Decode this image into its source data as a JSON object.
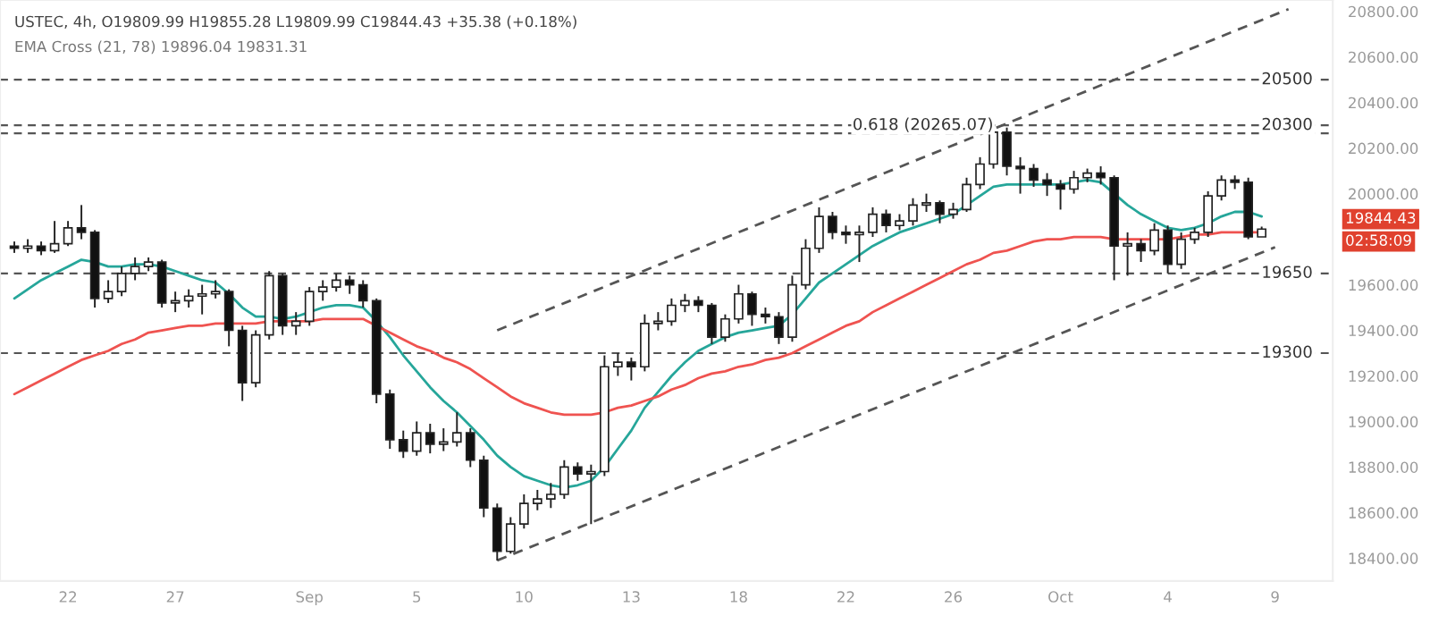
{
  "chart_data": {
    "type": "candlestick",
    "title": "USTEC, 4h, O19809.99 H19855.28 L19809.99 C19844.43 +35.38 (+0.18%)",
    "subtitle": "EMA Cross (21, 78) 19896.04 19831.31",
    "categories": [
      null,
      null,
      null,
      null,
      "22",
      null,
      null,
      null,
      null,
      null,
      null,
      null,
      "27",
      null,
      null,
      null,
      null,
      null,
      null,
      null,
      null,
      null,
      "Sep",
      null,
      null,
      null,
      null,
      null,
      null,
      null,
      "5",
      null,
      null,
      null,
      null,
      null,
      null,
      null,
      "10",
      null,
      null,
      null,
      null,
      null,
      null,
      null,
      "13",
      null,
      null,
      null,
      null,
      null,
      null,
      null,
      "18",
      null,
      null,
      null,
      null,
      null,
      null,
      null,
      "22",
      null,
      null,
      null,
      null,
      null,
      null,
      null,
      "26",
      null,
      null,
      null,
      null,
      null,
      null,
      null,
      "Oct",
      null,
      null,
      null,
      null,
      null,
      null,
      null,
      "4",
      null,
      null,
      null,
      null,
      null,
      null,
      null,
      "9",
      null,
      null,
      null,
      null
    ],
    "ohlc": [
      [
        19770,
        19790,
        19740,
        19760
      ],
      [
        19760,
        19800,
        19740,
        19770
      ],
      [
        19770,
        19790,
        19730,
        19750
      ],
      [
        19750,
        19880,
        19740,
        19780
      ],
      [
        19780,
        19880,
        19770,
        19850
      ],
      [
        19850,
        19950,
        19800,
        19830
      ],
      [
        19830,
        19840,
        19500,
        19540
      ],
      [
        19540,
        19620,
        19520,
        19570
      ],
      [
        19570,
        19680,
        19550,
        19650
      ],
      [
        19650,
        19720,
        19620,
        19680
      ],
      [
        19680,
        19720,
        19660,
        19700
      ],
      [
        19700,
        19710,
        19500,
        19520
      ],
      [
        19520,
        19570,
        19480,
        19530
      ],
      [
        19530,
        19580,
        19500,
        19550
      ],
      [
        19550,
        19600,
        19470,
        19560
      ],
      [
        19560,
        19620,
        19540,
        19570
      ],
      [
        19570,
        19580,
        19330,
        19400
      ],
      [
        19400,
        19420,
        19090,
        19170
      ],
      [
        19170,
        19400,
        19150,
        19380
      ],
      [
        19380,
        19660,
        19360,
        19640
      ],
      [
        19640,
        19650,
        19380,
        19420
      ],
      [
        19420,
        19480,
        19380,
        19440
      ],
      [
        19440,
        19590,
        19420,
        19570
      ],
      [
        19570,
        19620,
        19530,
        19590
      ],
      [
        19590,
        19650,
        19570,
        19620
      ],
      [
        19620,
        19640,
        19560,
        19600
      ],
      [
        19600,
        19620,
        19500,
        19530
      ],
      [
        19530,
        19540,
        19080,
        19120
      ],
      [
        19120,
        19140,
        18880,
        18920
      ],
      [
        18920,
        18960,
        18840,
        18870
      ],
      [
        18870,
        19000,
        18850,
        18950
      ],
      [
        18950,
        18990,
        18860,
        18900
      ],
      [
        18900,
        18970,
        18870,
        18910
      ],
      [
        18910,
        19040,
        18890,
        18950
      ],
      [
        18950,
        18970,
        18800,
        18830
      ],
      [
        18830,
        18850,
        18580,
        18620
      ],
      [
        18620,
        18640,
        18390,
        18430
      ],
      [
        18430,
        18580,
        18420,
        18550
      ],
      [
        18550,
        18680,
        18530,
        18640
      ],
      [
        18640,
        18700,
        18610,
        18660
      ],
      [
        18660,
        18730,
        18620,
        18680
      ],
      [
        18680,
        18830,
        18660,
        18800
      ],
      [
        18800,
        18820,
        18740,
        18770
      ],
      [
        18770,
        18810,
        18550,
        18780
      ],
      [
        18780,
        19290,
        18760,
        19240
      ],
      [
        19240,
        19300,
        19200,
        19260
      ],
      [
        19260,
        19280,
        19180,
        19240
      ],
      [
        19240,
        19470,
        19220,
        19430
      ],
      [
        19430,
        19480,
        19400,
        19440
      ],
      [
        19440,
        19540,
        19420,
        19510
      ],
      [
        19510,
        19560,
        19480,
        19530
      ],
      [
        19530,
        19550,
        19480,
        19510
      ],
      [
        19510,
        19520,
        19340,
        19370
      ],
      [
        19370,
        19470,
        19350,
        19450
      ],
      [
        19450,
        19600,
        19430,
        19560
      ],
      [
        19560,
        19570,
        19420,
        19470
      ],
      [
        19470,
        19500,
        19430,
        19460
      ],
      [
        19460,
        19480,
        19340,
        19370
      ],
      [
        19370,
        19640,
        19350,
        19600
      ],
      [
        19600,
        19800,
        19580,
        19760
      ],
      [
        19760,
        19940,
        19740,
        19900
      ],
      [
        19900,
        19920,
        19800,
        19830
      ],
      [
        19830,
        19860,
        19780,
        19820
      ],
      [
        19820,
        19860,
        19700,
        19830
      ],
      [
        19830,
        19940,
        19810,
        19910
      ],
      [
        19910,
        19930,
        19830,
        19860
      ],
      [
        19860,
        19910,
        19840,
        19880
      ],
      [
        19880,
        19980,
        19860,
        19950
      ],
      [
        19950,
        20000,
        19920,
        19960
      ],
      [
        19960,
        19970,
        19870,
        19910
      ],
      [
        19910,
        19960,
        19890,
        19930
      ],
      [
        19930,
        20070,
        19920,
        20040
      ],
      [
        20040,
        20160,
        20020,
        20130
      ],
      [
        20130,
        20300,
        20110,
        20270
      ],
      [
        20270,
        20290,
        20080,
        20120
      ],
      [
        20120,
        20160,
        20000,
        20110
      ],
      [
        20110,
        20130,
        20030,
        20060
      ],
      [
        20060,
        20090,
        19990,
        20040
      ],
      [
        20040,
        20060,
        19930,
        20020
      ],
      [
        20020,
        20100,
        20000,
        20070
      ],
      [
        20070,
        20110,
        20050,
        20090
      ],
      [
        20090,
        20120,
        20040,
        20070
      ],
      [
        20070,
        20080,
        19620,
        19770
      ],
      [
        19770,
        19830,
        19640,
        19780
      ],
      [
        19780,
        19800,
        19700,
        19750
      ],
      [
        19750,
        19870,
        19730,
        19840
      ],
      [
        19840,
        19860,
        19650,
        19690
      ],
      [
        19690,
        19830,
        19670,
        19800
      ],
      [
        19800,
        19850,
        19780,
        19830
      ],
      [
        19830,
        20010,
        19810,
        19990
      ],
      [
        19990,
        20080,
        19970,
        20060
      ],
      [
        20060,
        20080,
        20020,
        20050
      ],
      [
        20050,
        20070,
        19800,
        19810
      ],
      [
        19809.99,
        19855.28,
        19809.99,
        19844.43
      ],
      null,
      null,
      null,
      null,
      null
    ],
    "series": [
      {
        "type": "line",
        "color": "#26a69a",
        "values": [
          19540,
          19580,
          19620,
          19650,
          19680,
          19710,
          19700,
          19680,
          19680,
          19690,
          19690,
          19680,
          19660,
          19640,
          19620,
          19610,
          19560,
          19500,
          19460,
          19460,
          19450,
          19460,
          19480,
          19500,
          19510,
          19510,
          19500,
          19440,
          19370,
          19290,
          19220,
          19150,
          19090,
          19040,
          18980,
          18920,
          18850,
          18800,
          18760,
          18740,
          18720,
          18710,
          18720,
          18740,
          18800,
          18880,
          18960,
          19060,
          19130,
          19200,
          19260,
          19310,
          19340,
          19370,
          19390,
          19400,
          19410,
          19420,
          19470,
          19540,
          19610,
          19650,
          19690,
          19730,
          19770,
          19800,
          19830,
          19850,
          19870,
          19890,
          19910,
          19950,
          19990,
          20030,
          20040,
          20040,
          20040,
          20040,
          20040,
          20050,
          20060,
          20050,
          20000,
          19950,
          19910,
          19880,
          19850,
          19840,
          19850,
          19870,
          19900,
          19920,
          19920,
          19900,
          null,
          null,
          null,
          null,
          null
        ]
      },
      {
        "type": "line",
        "color": "#ef5350",
        "values": [
          19120,
          19150,
          19180,
          19210,
          19240,
          19270,
          19290,
          19310,
          19340,
          19360,
          19390,
          19400,
          19410,
          19420,
          19420,
          19430,
          19430,
          19430,
          19430,
          19440,
          19440,
          19440,
          19440,
          19450,
          19450,
          19450,
          19450,
          19420,
          19390,
          19360,
          19330,
          19310,
          19280,
          19260,
          19230,
          19190,
          19150,
          19110,
          19080,
          19060,
          19040,
          19030,
          19030,
          19030,
          19040,
          19060,
          19070,
          19090,
          19110,
          19140,
          19160,
          19190,
          19210,
          19220,
          19240,
          19250,
          19270,
          19280,
          19300,
          19330,
          19360,
          19390,
          19420,
          19440,
          19480,
          19510,
          19540,
          19570,
          19600,
          19630,
          19660,
          19690,
          19710,
          19740,
          19750,
          19770,
          19790,
          19800,
          19800,
          19810,
          19810,
          19810,
          19800,
          19800,
          19800,
          19800,
          19800,
          19810,
          19820,
          19820,
          19830,
          19830,
          19830,
          19830,
          null,
          null,
          null,
          null,
          null
        ]
      },
      {
        "type": "line",
        "color": "#555555",
        "line_style": "dashed",
        "values": [
          null,
          null,
          null,
          null,
          null,
          null,
          null,
          null,
          null,
          null,
          null,
          null,
          null,
          null,
          null,
          null,
          null,
          null,
          null,
          null,
          null,
          null,
          null,
          null,
          null,
          null,
          null,
          null,
          null,
          null,
          null,
          null,
          null,
          null,
          null,
          null,
          19400,
          null,
          null,
          null,
          null,
          null,
          null,
          null,
          null,
          null,
          null,
          null,
          null,
          null,
          null,
          null,
          null,
          null,
          null,
          null,
          null,
          null,
          null,
          null,
          null,
          null,
          null,
          null,
          null,
          null,
          null,
          null,
          null,
          null,
          null,
          null,
          null,
          null,
          null,
          null,
          null,
          null,
          null,
          null,
          null,
          null,
          null,
          null,
          null,
          null,
          null,
          null,
          null,
          null,
          null,
          null,
          null,
          null,
          null,
          20810,
          null,
          null,
          null
        ]
      },
      {
        "type": "line",
        "color": "#555555",
        "line_style": "dashed",
        "values": [
          null,
          null,
          null,
          null,
          null,
          null,
          null,
          null,
          null,
          null,
          null,
          null,
          null,
          null,
          null,
          null,
          null,
          null,
          null,
          null,
          null,
          null,
          null,
          null,
          null,
          null,
          null,
          null,
          null,
          null,
          null,
          null,
          null,
          null,
          null,
          null,
          18390,
          null,
          null,
          null,
          null,
          null,
          null,
          null,
          null,
          null,
          null,
          null,
          null,
          null,
          null,
          null,
          null,
          null,
          null,
          null,
          null,
          null,
          null,
          null,
          null,
          null,
          null,
          null,
          null,
          null,
          null,
          null,
          null,
          null,
          null,
          null,
          null,
          null,
          null,
          null,
          null,
          null,
          null,
          null,
          null,
          null,
          null,
          null,
          null,
          null,
          null,
          null,
          null,
          null,
          null,
          null,
          null,
          null,
          19765,
          null,
          null,
          null,
          null
        ]
      }
    ],
    "ref_lines": [
      {
        "axis": "y",
        "value": 20500,
        "label": "20500",
        "color": "#555555",
        "line_style": "dashed"
      },
      {
        "axis": "y",
        "value": 20300,
        "label": "20300",
        "color": "#555555",
        "line_style": "dashed"
      },
      {
        "axis": "y",
        "value": 20265.07,
        "label": "0.618 (20265.07)",
        "color": "#555555",
        "line_style": "dashed"
      },
      {
        "axis": "y",
        "value": 19650,
        "label": "19650",
        "color": "#555555",
        "line_style": "dashed"
      },
      {
        "axis": "y",
        "value": 19300,
        "label": "19300",
        "color": "#555555",
        "line_style": "dashed"
      }
    ],
    "annotations": [
      "19844.43",
      "02:58:09"
    ],
    "ylim": [
      18300,
      20850
    ],
    "yticks": [
      {
        "value": 18400,
        "label": "18400.00"
      },
      {
        "value": 18600,
        "label": "18600.00"
      },
      {
        "value": 18800,
        "label": "18800.00"
      },
      {
        "value": 19000,
        "label": "19000.00"
      },
      {
        "value": 19200,
        "label": "19200.00"
      },
      {
        "value": 19400,
        "label": "19400.00"
      },
      {
        "value": 19600,
        "label": "19600.00"
      },
      {
        "value": 20000,
        "label": "20000.00"
      },
      {
        "value": 20200,
        "label": "20200.00"
      },
      {
        "value": 20400,
        "label": "20400.00"
      },
      {
        "value": 20600,
        "label": "20600.00"
      },
      {
        "value": 20800,
        "label": "20800.00"
      }
    ],
    "grid": false,
    "legend": false
  }
}
